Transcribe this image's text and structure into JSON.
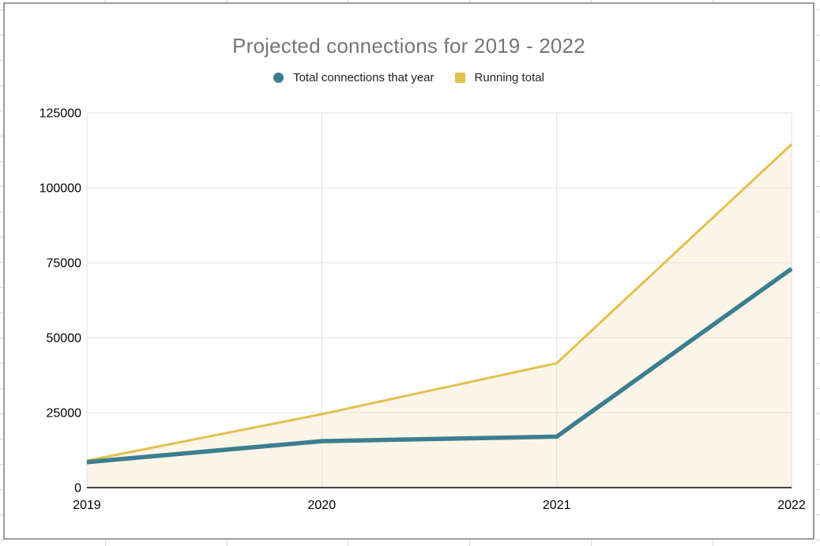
{
  "chart": {
    "title": "Projected connections for 2019 - 2022",
    "legend": [
      {
        "label": "Total connections that year",
        "marker": "circle",
        "color": "#3c7e91"
      },
      {
        "label": "Running total",
        "marker": "square",
        "color": "#e3c04f"
      }
    ]
  },
  "chart_data": {
    "type": "area",
    "title": "Projected connections for 2019 - 2022",
    "categories": [
      "2019",
      "2020",
      "2021",
      "2022"
    ],
    "series": [
      {
        "name": "Total connections that year",
        "color": "#3c7e91",
        "values": [
          8500,
          15500,
          17000,
          73000
        ]
      },
      {
        "name": "Running total",
        "color": "#e3c04f",
        "fill": "#faf5e6",
        "values": [
          9000,
          24500,
          41500,
          114500
        ]
      }
    ],
    "xlabel": "",
    "ylabel": "",
    "ylim": [
      0,
      125000
    ],
    "y_ticks": [
      0,
      25000,
      50000,
      75000,
      100000,
      125000
    ],
    "y_tick_labels": [
      "0",
      "25000",
      "50000",
      "75000",
      "100000",
      "125000"
    ],
    "grid": true,
    "legend_position": "top"
  }
}
